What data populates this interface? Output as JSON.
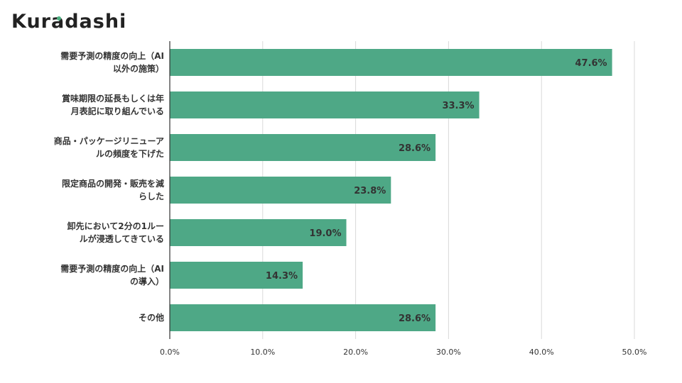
{
  "brand": {
    "logo_text": "Kuradashi",
    "accent_color": "#4caf80"
  },
  "chart_data": {
    "type": "bar",
    "orientation": "horizontal",
    "categories": [
      [
        "需要予測の精度の向上（AI",
        "以外の施策）"
      ],
      [
        "賞味期限の延長もしくは年",
        "月表記に取り組んでいる"
      ],
      [
        "商品・パッケージリニューア",
        "ルの頻度を下げた"
      ],
      [
        "限定商品の開発・販売を減",
        "らした"
      ],
      [
        "卸先において2分の1ルー",
        "ルが浸透してきている"
      ],
      [
        "需要予測の精度の向上（AI",
        "の導入）"
      ],
      [
        "その他"
      ]
    ],
    "values": [
      47.6,
      33.3,
      28.6,
      23.8,
      19.0,
      14.3,
      28.6
    ],
    "value_labels": [
      "47.6%",
      "33.3%",
      "28.6%",
      "23.8%",
      "19.0%",
      "14.3%",
      "28.6%"
    ],
    "xlim": [
      0,
      50
    ],
    "ticks": [
      0,
      10,
      20,
      30,
      40,
      50
    ],
    "tick_labels": [
      "0.0%",
      "10.0%",
      "20.0%",
      "30.0%",
      "40.0%",
      "50.0%"
    ],
    "grid": true,
    "bar_color": "#4ea886",
    "grid_color": "#d9d9d9",
    "axis_color": "#333333"
  }
}
